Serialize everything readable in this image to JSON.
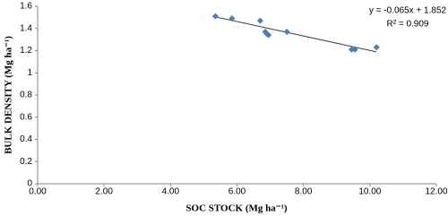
{
  "chart_data": {
    "type": "scatter",
    "x": [
      5.35,
      5.85,
      6.7,
      6.85,
      6.9,
      6.95,
      7.5,
      9.45,
      9.55,
      10.2
    ],
    "series": [
      {
        "color": "#4a7ebb",
        "values": [
          1.51,
          1.49,
          1.47,
          1.37,
          1.35,
          1.34,
          1.37,
          1.21,
          1.21,
          1.23
        ]
      }
    ],
    "xlim": [
      0,
      12
    ],
    "xticks": [
      {
        "value": 0,
        "label": "0.00"
      },
      {
        "value": 2,
        "label": "2.00"
      },
      {
        "value": 4,
        "label": "4.00"
      },
      {
        "value": 6,
        "label": "6.00"
      },
      {
        "value": 8,
        "label": "8.00"
      },
      {
        "value": 10,
        "label": "10.00"
      },
      {
        "value": 12,
        "label": "12.00"
      }
    ],
    "ylim": [
      0,
      1.6
    ],
    "yticks": [
      0,
      0.2,
      0.4,
      0.6,
      0.8,
      1,
      1.2,
      1.4,
      1.6
    ],
    "xlabel": "SOC STOCK (Mg ha⁻¹)",
    "ylabel": "BULK DENSITY (Mg ha⁻¹)",
    "trendline": {
      "slope": -0.065,
      "intercept": 1.852,
      "color": "#404040"
    },
    "annotations": [
      "y = -0.065x + 1.852",
      "R² = 0.909"
    ],
    "grid": false
  }
}
